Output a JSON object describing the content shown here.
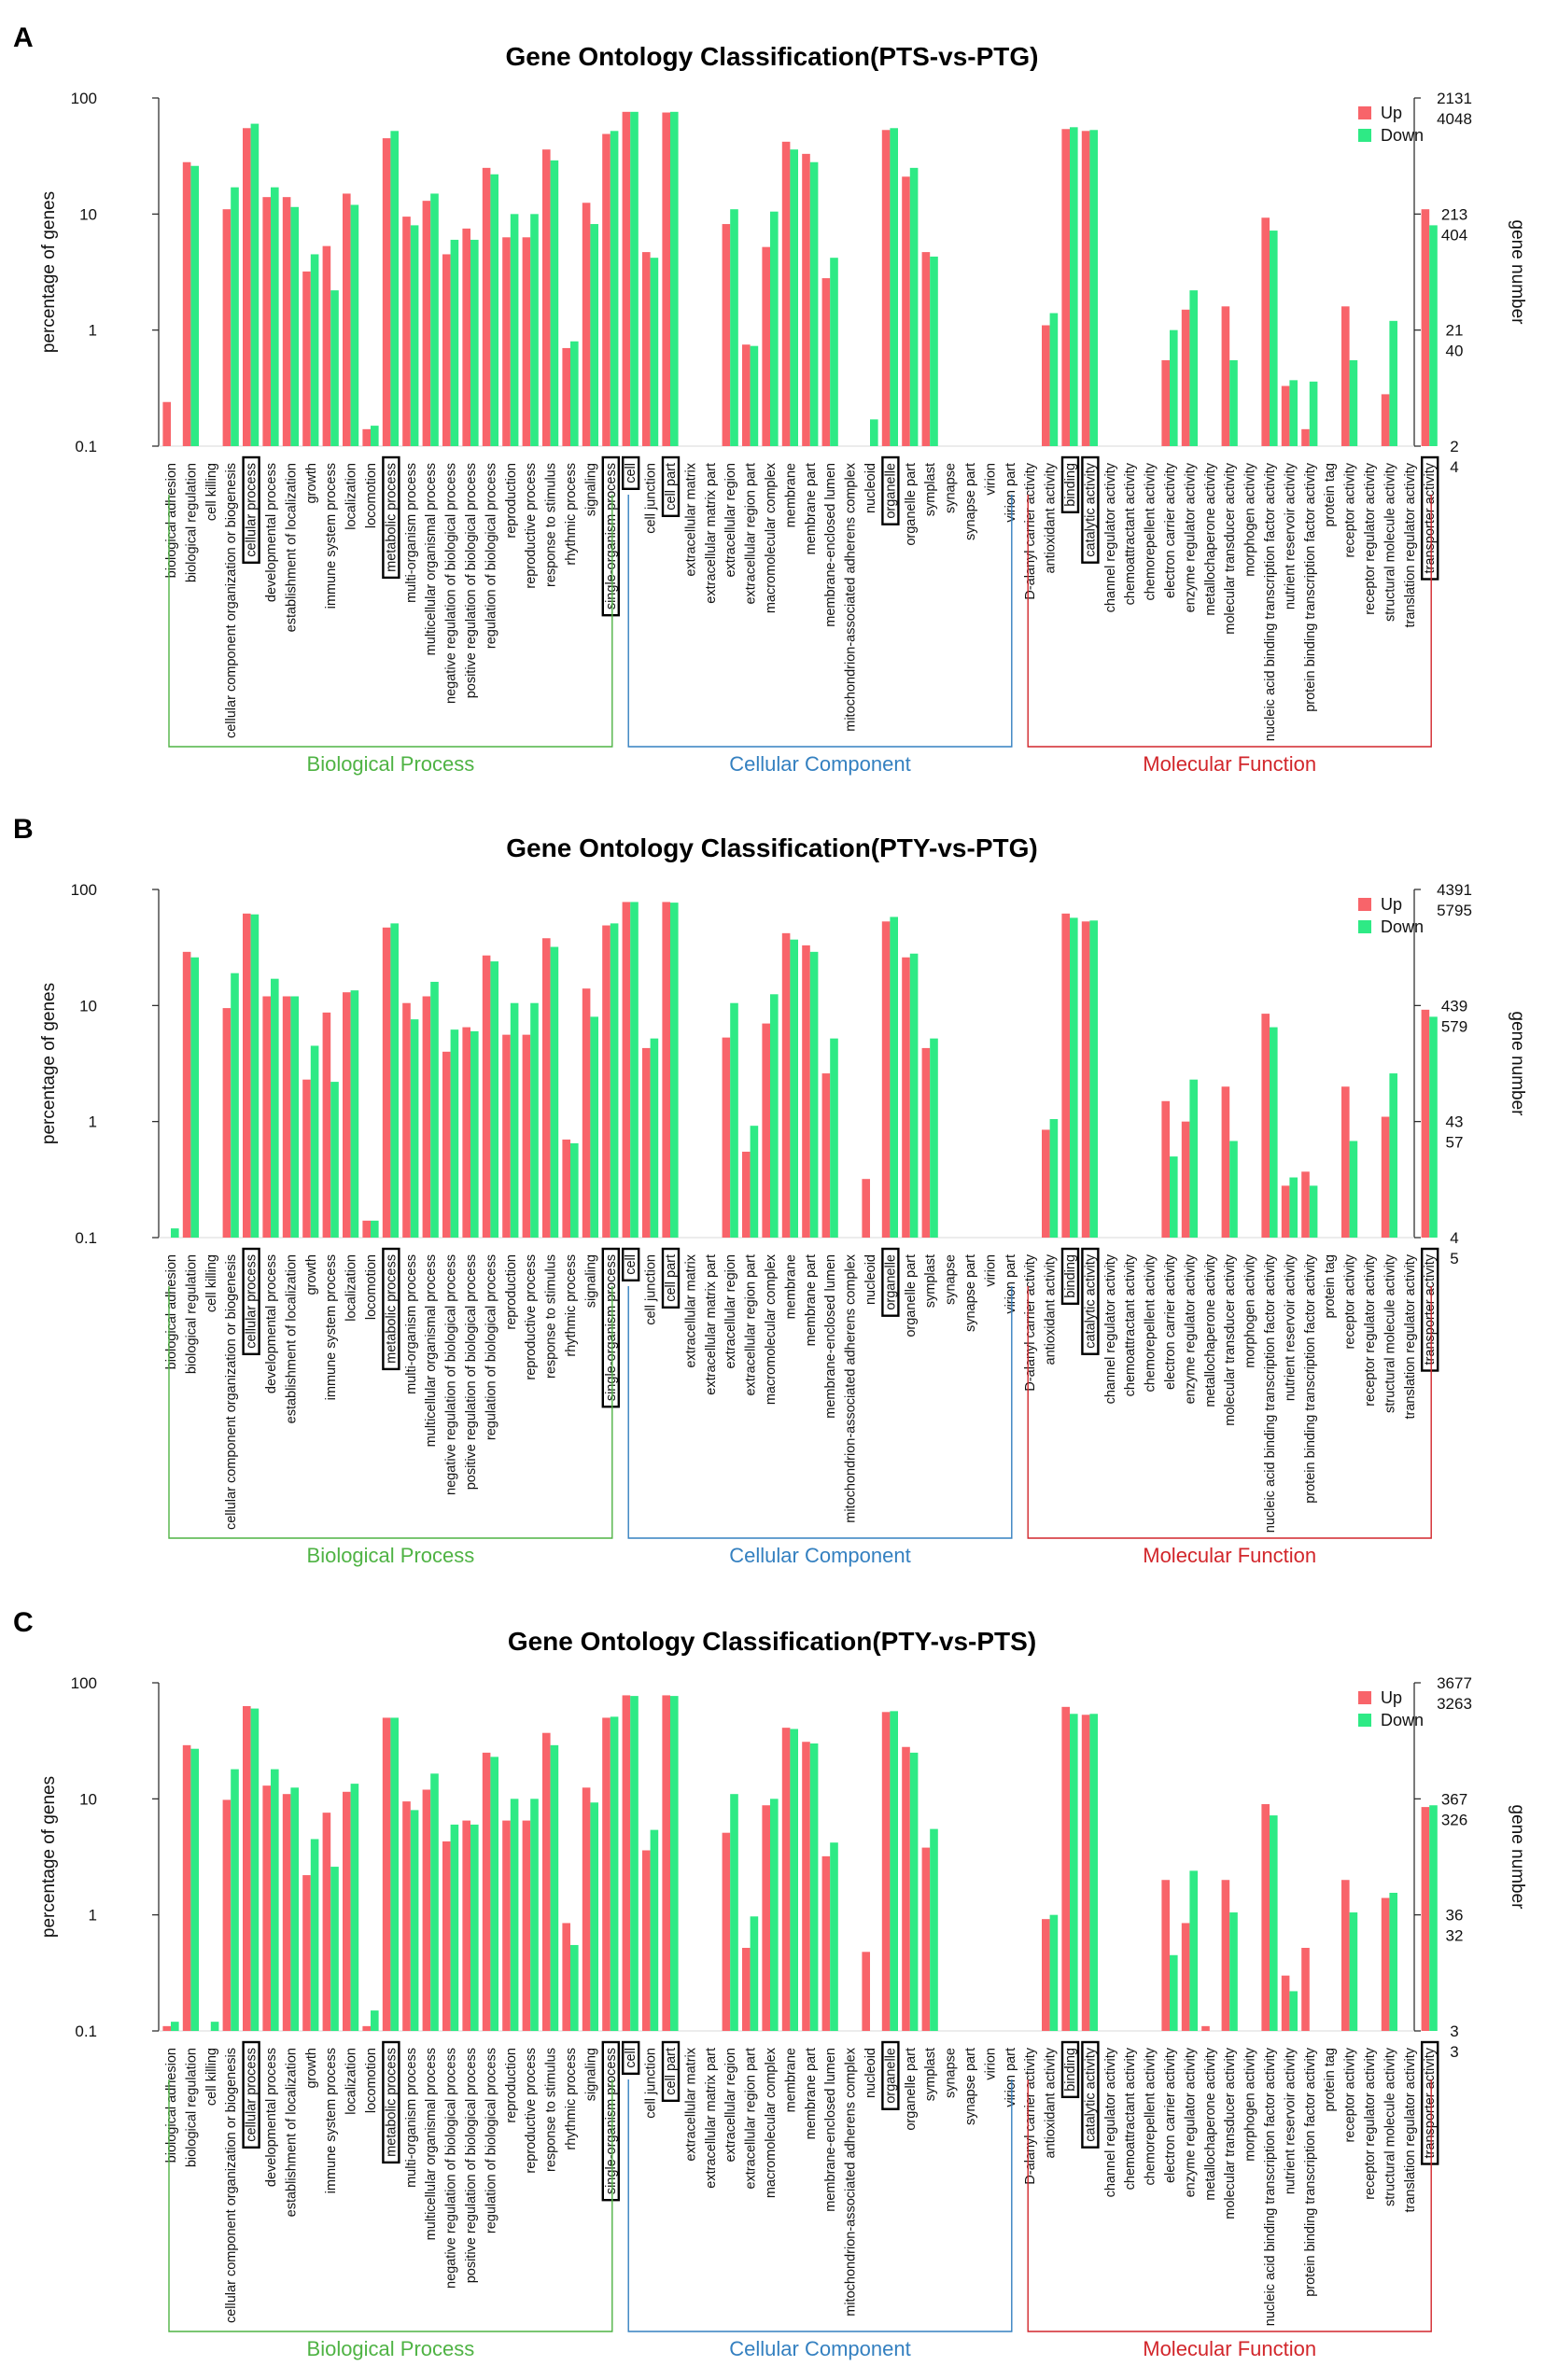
{
  "colors": {
    "up": "#f8646a",
    "down": "#2eea85",
    "right_axis_up": "#f0474f",
    "right_axis_down": "#18d475",
    "biological_process": "#4fb344",
    "cellular_component": "#3480c0",
    "molecular_function": "#d2262b"
  },
  "categories": [
    "biological adhesion",
    "biological regulation",
    "cell killing",
    "cellular component organization or biogenesis",
    "cellular process",
    "developmental process",
    "establishment of localization",
    "growth",
    "immune system process",
    "localization",
    "locomotion",
    "metabolic process",
    "multi-organism process",
    "multicellular organismal process",
    "negative regulation of biological process",
    "positive regulation of biological process",
    "regulation of biological process",
    "reproduction",
    "reproductive process",
    "response to stimulus",
    "rhythmic process",
    "signaling",
    "single-organism process",
    "cell",
    "cell junction",
    "cell part",
    "extracellular matrix",
    "extracellular matrix part",
    "extracellular region",
    "extracellular region part",
    "macromolecular complex",
    "membrane",
    "membrane part",
    "membrane-enclosed lumen",
    "mitochondrion-associated adherens complex",
    "nucleoid",
    "organelle",
    "organelle part",
    "symplast",
    "synapse",
    "synapse part",
    "virion",
    "virion part",
    "D-alanyl carrier activity",
    "antioxidant activity",
    "binding",
    "catalytic activity",
    "channel regulator activity",
    "chemoattractant activity",
    "chemorepellent activity",
    "electron carrier activity",
    "enzyme regulator activity",
    "metallochaperone activity",
    "molecular transducer activity",
    "morphogen activity",
    "nucleic acid binding transcription factor activity",
    "nutrient reservoir activity",
    "protein binding transcription factor activity",
    "protein tag",
    "receptor activity",
    "receptor regulator activity",
    "structural molecule activity",
    "translation regulator activity",
    "transporter activity"
  ],
  "boxed_categories": [
    "cellular process",
    "metabolic process",
    "single-organism process",
    "cell",
    "cell part",
    "organelle",
    "binding",
    "catalytic activity",
    "transporter activity"
  ],
  "groups": [
    {
      "name": "Biological Process",
      "start": "biological adhesion",
      "end": "single-organism process"
    },
    {
      "name": "Cellular Component",
      "start": "cell",
      "end": "virion part"
    },
    {
      "name": "Molecular Function",
      "start": "D-alanyl carrier activity",
      "end": "transporter activity"
    }
  ],
  "chart_data": [
    {
      "panel": "A",
      "type": "bar",
      "title": "Gene Ontology Classification(PTS-vs-PTG)",
      "ylabel": "percentage of genes",
      "ylabel_right": "gene number",
      "yscale": "log",
      "ylim": [
        0.1,
        100
      ],
      "yticks": [
        "100",
        "10",
        "1",
        "0.1"
      ],
      "right_ticks_up": [
        "2131",
        "213",
        "21",
        "2"
      ],
      "right_ticks_down": [
        "4048",
        "404",
        "40",
        "4"
      ],
      "legend": [
        "Up",
        "Down"
      ],
      "series": [
        {
          "name": "Up",
          "values": [
            0.24,
            28,
            0,
            11,
            55,
            14,
            14,
            3.2,
            5.3,
            15,
            0.14,
            45,
            9.5,
            13,
            4.5,
            7.5,
            25,
            6.3,
            6.3,
            36,
            0.7,
            12.5,
            49,
            76,
            4.7,
            75,
            0,
            0,
            8.2,
            0.75,
            5.2,
            42,
            33,
            2.8,
            0,
            0,
            53,
            21,
            4.7,
            0,
            0,
            0,
            0,
            0,
            1.1,
            54,
            52,
            0,
            0,
            0,
            0.55,
            1.5,
            0,
            1.6,
            0,
            9.3,
            0.33,
            0.14,
            0,
            1.6,
            0,
            0.28,
            0,
            11
          ]
        },
        {
          "name": "Down",
          "values": [
            0,
            26,
            0,
            17,
            60,
            17,
            11.5,
            4.5,
            2.2,
            12,
            0.15,
            52,
            8,
            15,
            6,
            6,
            22,
            10,
            10,
            29,
            0.8,
            8.2,
            52,
            76,
            4.2,
            76,
            0,
            0,
            11,
            0.73,
            10.5,
            36,
            28,
            4.2,
            0,
            0.17,
            55,
            25,
            4.3,
            0,
            0,
            0,
            0,
            0,
            1.4,
            56,
            53,
            0,
            0,
            0,
            1.0,
            2.2,
            0,
            0.55,
            0,
            7.2,
            0.37,
            0.36,
            0,
            0.55,
            0,
            1.2,
            0,
            8
          ]
        }
      ]
    },
    {
      "panel": "B",
      "type": "bar",
      "title": "Gene Ontology Classification(PTY-vs-PTG)",
      "ylabel": "percentage of genes",
      "ylabel_right": "gene number",
      "yscale": "log",
      "ylim": [
        0.1,
        100
      ],
      "yticks": [
        "100",
        "10",
        "1",
        "0.1"
      ],
      "right_ticks_up": [
        "4391",
        "439",
        "43",
        "4"
      ],
      "right_ticks_down": [
        "5795",
        "579",
        "57",
        "5"
      ],
      "legend": [
        "Up",
        "Down"
      ],
      "series": [
        {
          "name": "Up",
          "values": [
            0,
            29,
            0,
            9.5,
            62,
            12,
            12,
            2.3,
            8.7,
            13,
            0.14,
            47,
            10.5,
            12,
            4,
            6.5,
            27,
            5.6,
            5.6,
            38,
            0.7,
            14,
            49,
            78,
            4.3,
            78,
            0,
            0,
            5.3,
            0.55,
            7,
            42,
            33,
            2.6,
            0,
            0.32,
            53,
            26,
            4.3,
            0,
            0,
            0,
            0,
            0,
            0.85,
            62,
            53,
            0,
            0,
            0,
            1.5,
            1.0,
            0,
            2.0,
            0,
            8.5,
            0.28,
            0.37,
            0,
            2.0,
            0,
            1.1,
            0,
            9.2
          ]
        },
        {
          "name": "Down",
          "values": [
            0.12,
            26,
            0.1,
            19,
            61,
            17,
            12,
            4.5,
            2.2,
            13.5,
            0.14,
            51,
            7.6,
            16,
            6.2,
            6,
            24,
            10.5,
            10.5,
            32,
            0.65,
            8,
            51,
            78,
            5.2,
            77,
            0,
            0,
            10.5,
            0.92,
            12.5,
            37,
            29,
            5.2,
            0,
            0,
            58,
            28,
            5.2,
            0,
            0,
            0,
            0,
            0,
            1.05,
            57,
            54,
            0,
            0,
            0,
            0.5,
            2.3,
            0,
            0.68,
            0,
            6.5,
            0.33,
            0.28,
            0,
            0.68,
            0,
            2.6,
            0,
            8
          ]
        }
      ]
    },
    {
      "panel": "C",
      "type": "bar",
      "title": "Gene Ontology Classification(PTY-vs-PTS)",
      "ylabel": "percentage of genes",
      "ylabel_right": "gene number",
      "yscale": "log",
      "ylim": [
        0.1,
        100
      ],
      "yticks": [
        "100",
        "10",
        "1",
        "0.1"
      ],
      "right_ticks_up": [
        "3677",
        "367",
        "36",
        "3"
      ],
      "right_ticks_down": [
        "3263",
        "326",
        "32",
        "3"
      ],
      "legend": [
        "Up",
        "Down"
      ],
      "series": [
        {
          "name": "Up",
          "values": [
            0.11,
            29,
            0,
            9.8,
            63,
            13,
            11,
            2.2,
            7.6,
            11.5,
            0.11,
            50,
            9.5,
            12,
            4.3,
            6.5,
            25,
            6.5,
            6.5,
            37,
            0.85,
            12.5,
            50,
            78,
            3.6,
            78,
            0,
            0,
            5.1,
            0.52,
            8.8,
            41,
            31,
            3.2,
            0,
            0.48,
            56,
            28,
            3.8,
            0,
            0,
            0,
            0,
            0,
            0.92,
            62,
            53,
            0,
            0,
            0,
            2.0,
            0.85,
            0.11,
            2.0,
            0,
            9,
            0.3,
            0.52,
            0,
            2.0,
            0,
            1.4,
            0,
            8.5
          ]
        },
        {
          "name": "Down",
          "values": [
            0.12,
            27,
            0.12,
            18,
            60,
            18,
            12.5,
            4.5,
            2.6,
            13.5,
            0.15,
            50,
            8,
            16.5,
            6,
            6,
            23,
            10,
            10,
            29,
            0.55,
            9.3,
            51,
            77,
            5.4,
            77,
            0,
            0,
            11,
            0.97,
            10,
            40,
            30,
            4.2,
            0,
            0,
            57,
            25,
            5.5,
            0,
            0,
            0,
            0,
            0,
            1.0,
            54,
            54,
            0,
            0,
            0,
            0.45,
            2.4,
            0,
            1.05,
            0,
            7.2,
            0.22,
            0,
            0,
            1.05,
            0,
            1.55,
            0,
            8.8
          ]
        }
      ]
    }
  ]
}
